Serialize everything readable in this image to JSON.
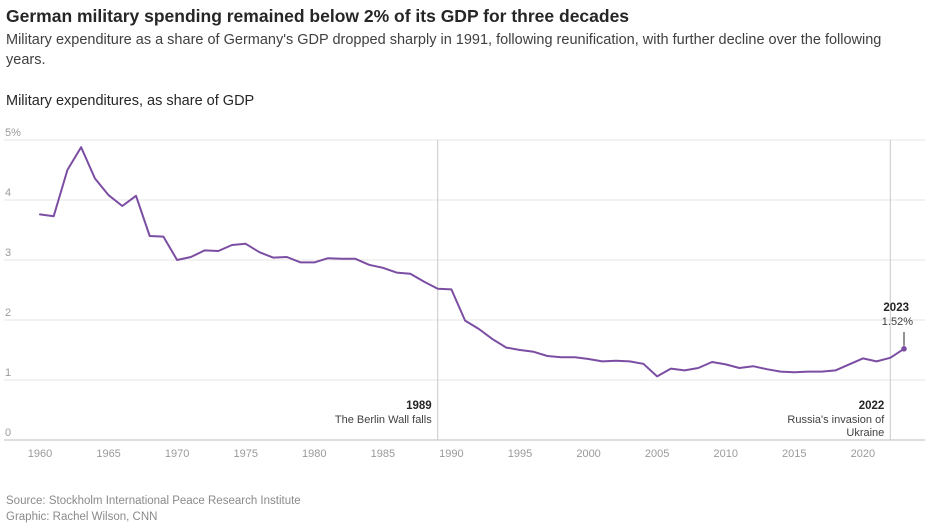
{
  "header": {
    "title": "German military spending remained below 2% of its GDP for three decades",
    "subtitle": "Military expenditure as a share of Germany's GDP dropped sharply in 1991, following reunification, with further decline over the following years.",
    "chart_heading": "Military expenditures, as share of GDP"
  },
  "footer": {
    "source": "Source: Stockholm International Peace Research Institute",
    "credit": "Graphic: Rachel Wilson, CNN"
  },
  "colors": {
    "line": "#7b4ea3",
    "grid": "#e6e6e6",
    "annotation_line": "#c8c8c8"
  },
  "chart_data": {
    "type": "line",
    "title": "Military expenditures, as share of GDP",
    "xlabel": "",
    "ylabel": "",
    "xlim": [
      1960,
      2023
    ],
    "ylim": [
      0,
      5
    ],
    "x_ticks": [
      1960,
      1965,
      1970,
      1975,
      1980,
      1985,
      1990,
      1995,
      2000,
      2005,
      2010,
      2015,
      2020
    ],
    "y_ticks": [
      {
        "value": 0,
        "label": "0"
      },
      {
        "value": 1,
        "label": "1"
      },
      {
        "value": 2,
        "label": "2"
      },
      {
        "value": 3,
        "label": "3"
      },
      {
        "value": 4,
        "label": "4"
      },
      {
        "value": 5,
        "label": "5%"
      }
    ],
    "grid": true,
    "legend": "none",
    "series": [
      {
        "x": [
          1960,
          1961,
          1962,
          1963,
          1964,
          1965,
          1966,
          1967,
          1968,
          1969,
          1970,
          1971,
          1972,
          1973,
          1974,
          1975,
          1976,
          1977,
          1978,
          1979,
          1980,
          1981,
          1982,
          1983,
          1984,
          1985,
          1986,
          1987,
          1988,
          1989,
          1990,
          1991,
          1992,
          1993,
          1994,
          1995,
          1996,
          1997,
          1998,
          1999,
          2000,
          2001,
          2002,
          2003,
          2004,
          2005,
          2006,
          2007,
          2008,
          2009,
          2010,
          2011,
          2012,
          2013,
          2014,
          2015,
          2016,
          2017,
          2018,
          2019,
          2020,
          2021,
          2022,
          2023
        ],
        "values": [
          3.76,
          3.73,
          4.5,
          4.88,
          4.36,
          4.08,
          3.9,
          4.07,
          3.4,
          3.39,
          3.0,
          3.05,
          3.16,
          3.15,
          3.25,
          3.27,
          3.13,
          3.04,
          3.05,
          2.96,
          2.96,
          3.03,
          3.02,
          3.02,
          2.92,
          2.87,
          2.79,
          2.77,
          2.64,
          2.52,
          2.51,
          1.99,
          1.85,
          1.68,
          1.54,
          1.5,
          1.47,
          1.4,
          1.38,
          1.38,
          1.35,
          1.31,
          1.32,
          1.31,
          1.27,
          1.06,
          1.19,
          1.16,
          1.2,
          1.3,
          1.26,
          1.2,
          1.23,
          1.18,
          1.14,
          1.13,
          1.14,
          1.14,
          1.16,
          1.26,
          1.36,
          1.31,
          1.37,
          1.52
        ]
      }
    ],
    "annotations": [
      {
        "x": 1989,
        "year": "1989",
        "lines": [
          "The Berlin Wall falls"
        ]
      },
      {
        "x": 2022,
        "year": "2022",
        "lines": [
          "Russia's invasion of",
          "Ukraine"
        ]
      }
    ],
    "end_label": {
      "x": 2023,
      "year": "2023",
      "value": "1.52%"
    }
  }
}
